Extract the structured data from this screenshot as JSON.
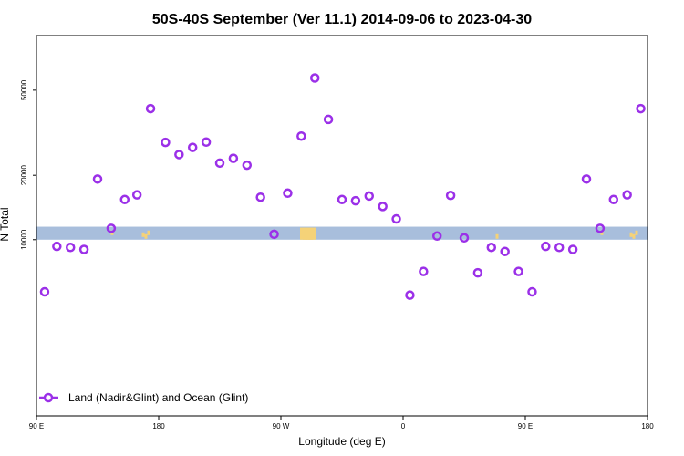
{
  "chart_data": {
    "type": "scatter",
    "title": "50S-40S September (Ver 11.1)   2014-09-06 to 2023-04-30",
    "xlabel": "Longitude (deg E)",
    "ylabel": "N Total",
    "x_ticks": [
      {
        "value": 90,
        "label": "90 E"
      },
      {
        "value": 180,
        "label": "180"
      },
      {
        "value": 270,
        "label": "90 W"
      },
      {
        "value": 360,
        "label": "0"
      },
      {
        "value": 450,
        "label": "90 E"
      },
      {
        "value": 540,
        "label": "180"
      }
    ],
    "y_ticks": [
      {
        "value": 10000,
        "label": "10000"
      },
      {
        "value": 20000,
        "label": "20000"
      },
      {
        "value": 50000,
        "label": "50000"
      }
    ],
    "xlim": [
      90,
      540
    ],
    "ylim": [
      1500,
      90000
    ],
    "y_scale": "log",
    "grid": false,
    "legend_position": "bottom-left",
    "series": [
      {
        "name": "Land (Nadir&Glint) and Ocean (Glint)",
        "color": "#9b30e8",
        "marker": "open-circle",
        "x": [
          96,
          105,
          115,
          125,
          135,
          145,
          155,
          164,
          174,
          185,
          195,
          205,
          215,
          225,
          235,
          245,
          255,
          265,
          275,
          285,
          295,
          305,
          315,
          325,
          335,
          345,
          355,
          365,
          375,
          385,
          395,
          405,
          415,
          425,
          435,
          445,
          455,
          465,
          475,
          485,
          495,
          505,
          515,
          525,
          535
        ],
        "y": [
          5700,
          9300,
          9200,
          9000,
          19200,
          11300,
          15400,
          16200,
          41000,
          28500,
          25000,
          27000,
          28600,
          22800,
          24000,
          22300,
          15800,
          10600,
          16500,
          30500,
          57000,
          36500,
          15400,
          15200,
          16000,
          14300,
          12500,
          5500,
          7100,
          10400,
          16100,
          10200,
          7000,
          9200,
          8800,
          7100,
          5700,
          9300,
          9200,
          9000,
          19200,
          11300,
          15400,
          16200,
          41000
        ]
      }
    ],
    "background_bands": [
      {
        "description": "land-ocean band",
        "color": "#a8bedc",
        "y_range": [
          10000,
          11500
        ]
      }
    ],
    "land_marks_color": "#f5d278"
  }
}
